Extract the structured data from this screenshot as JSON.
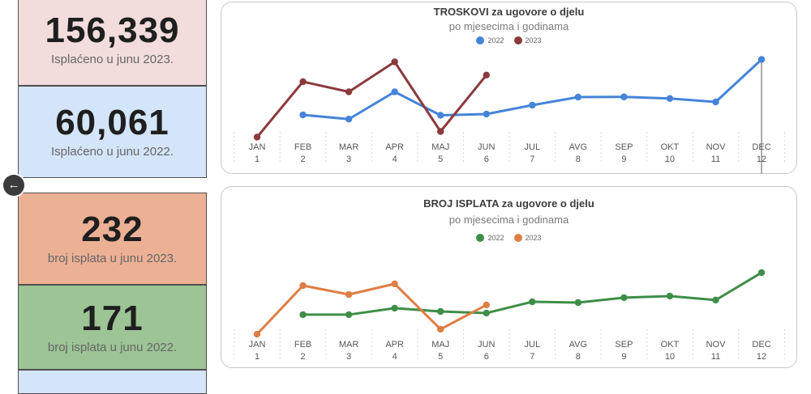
{
  "back_button": {
    "glyph": "←"
  },
  "stat_cards": [
    {
      "value": "156,339",
      "label": "Isplaćeno u junu 2023.",
      "bg": "#f2dcdc"
    },
    {
      "value": "60,061",
      "label": "Isplaćeno u junu 2022.",
      "bg": "#d4e4f9"
    },
    {
      "value": "232",
      "label": "broj isplata u junu 2023.",
      "bg": "#ecb095"
    },
    {
      "value": "171",
      "label": "broj isplata u junu 2022.",
      "bg": "#9cc495"
    },
    {
      "value": "",
      "label": "",
      "bg": "#d4e4f9"
    }
  ],
  "chart_data": [
    {
      "type": "line",
      "title": "TROSKOVI za ugovore o djelu",
      "subtitle": "po mjesecima i godinama",
      "categories": [
        "JAN",
        "FEB",
        "MAR",
        "APR",
        "MAJ",
        "JUN",
        "JUL",
        "AVG",
        "SEP",
        "OKT",
        "NOV",
        "DEC"
      ],
      "category_numbers": [
        "1",
        "2",
        "3",
        "4",
        "5",
        "6",
        "7",
        "8",
        "9",
        "10",
        "11",
        "12"
      ],
      "ylim": [
        0,
        200000
      ],
      "grid": "dashed-column-separators",
      "legend_position": "top-center",
      "marker_line_month": "DEC",
      "series": [
        {
          "name": "2022",
          "color": "#4584d8",
          "values": [
            null,
            58000,
            47500,
            115000,
            57000,
            60061,
            82000,
            102000,
            102500,
            98500,
            90000,
            195000
          ]
        },
        {
          "name": "2023",
          "color": "#8b3a3e",
          "values": [
            3000,
            140000,
            115000,
            189000,
            17000,
            156339,
            null,
            null,
            null,
            null,
            null,
            null
          ]
        }
      ]
    },
    {
      "type": "line",
      "title": "BROJ ISPLATA za ugovore o djelu",
      "subtitle": "po mjesecima i godinama",
      "categories": [
        "JAN",
        "FEB",
        "MAR",
        "APR",
        "MAJ",
        "JUN",
        "JUL",
        "AVG",
        "SEP",
        "OKT",
        "NOV",
        "DEC"
      ],
      "category_numbers": [
        "1",
        "2",
        "3",
        "4",
        "5",
        "6",
        "7",
        "8",
        "9",
        "10",
        "11",
        "12"
      ],
      "ylim": [
        0,
        500
      ],
      "grid": "dashed-column-separators",
      "legend_position": "top-center",
      "marker_line_month": null,
      "series": [
        {
          "name": "2022",
          "color": "#3e8e47",
          "values": [
            null,
            159,
            159,
            208,
            183,
            171,
            256,
            250,
            287,
            299,
            269,
            476
          ]
        },
        {
          "name": "2023",
          "color": "#dd7e44",
          "values": [
            12,
            378,
            311,
            391,
            49,
            232,
            null,
            null,
            null,
            null,
            null,
            null
          ]
        }
      ]
    }
  ]
}
